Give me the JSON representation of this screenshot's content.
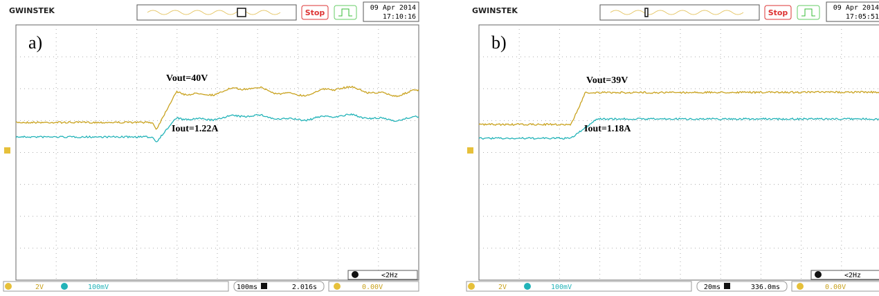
{
  "panels": [
    {
      "brand": "GWINSTEK",
      "run_state": "Stop",
      "date": "09 Apr 2014",
      "time": "17:10:16",
      "label": "a)",
      "annotations": [
        "Vout=40V",
        "Iout=1.22A"
      ],
      "ch1_scale": "2V",
      "ch2_scale": "100mV",
      "timebase": "100ms",
      "position": "2.016s",
      "trigger_level": "0.00V",
      "frequency": "<2Hz"
    },
    {
      "brand": "GWINSTEK",
      "run_state": "Stop",
      "date": "09 Apr 2014",
      "time": "17:05:51",
      "label": "b)",
      "annotations": [
        "Vout=39V",
        "Iout=1.18A"
      ],
      "ch1_scale": "2V",
      "ch2_scale": "100mV",
      "timebase": "20ms",
      "position": "336.0ms",
      "trigger_level": "0.00V",
      "frequency": "<2Hz"
    }
  ]
}
